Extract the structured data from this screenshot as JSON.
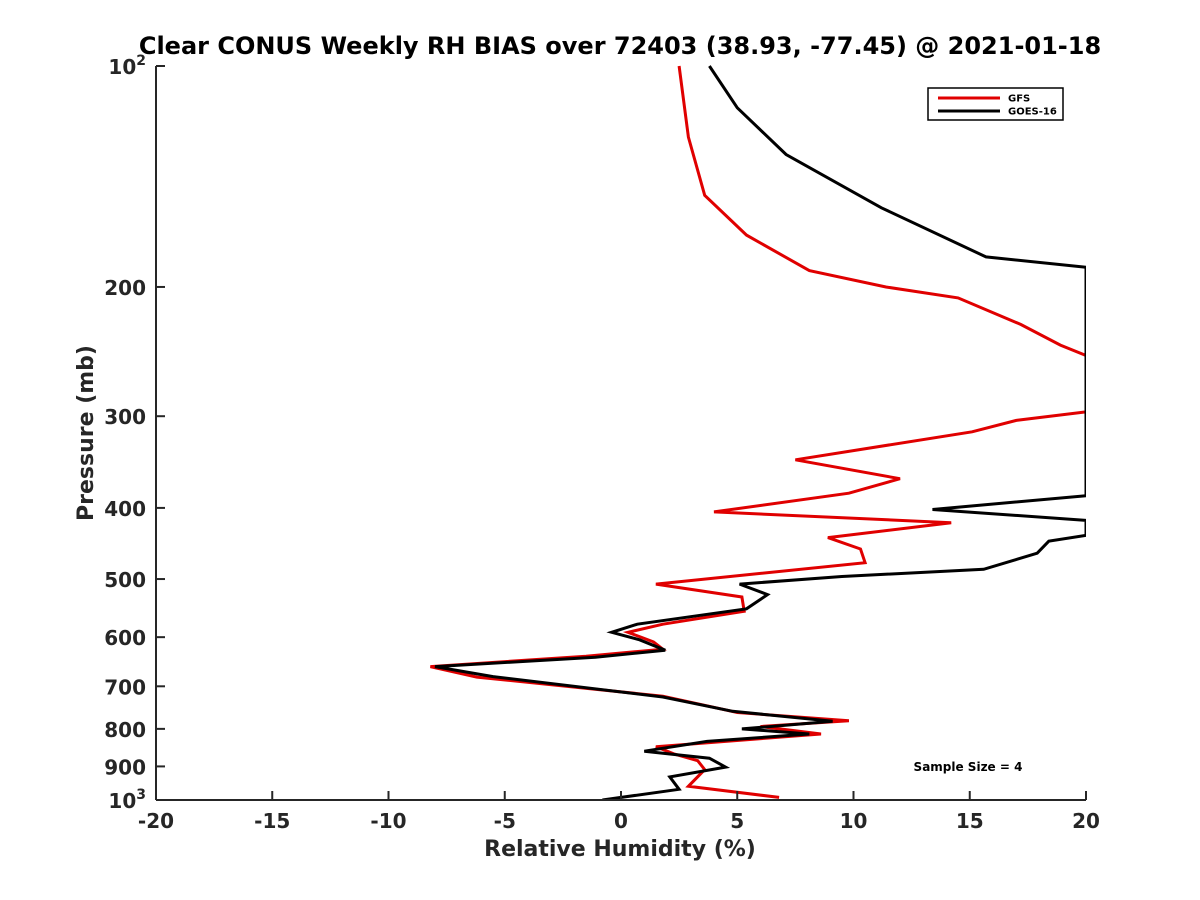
{
  "chart_data": {
    "type": "line",
    "title": "Clear CONUS Weekly RH BIAS over 72403 (38.93, -77.45) @ 2021-01-18",
    "xlabel": "Relative Humidity (%)",
    "ylabel": "Pressure (mb)",
    "xlim": [
      -20,
      20
    ],
    "ylim": [
      100,
      1000
    ],
    "y_scale": "log",
    "y_reversed": true,
    "x_ticks": [
      "-20",
      "-15",
      "-10",
      "-5",
      "0",
      "5",
      "10",
      "15",
      "20"
    ],
    "y_ticks": [
      {
        "value": 100,
        "base": "10",
        "exp": "2"
      },
      {
        "value": 200,
        "label": "200"
      },
      {
        "value": 300,
        "label": "300"
      },
      {
        "value": 400,
        "label": "400"
      },
      {
        "value": 500,
        "label": "500"
      },
      {
        "value": 600,
        "label": "600"
      },
      {
        "value": 700,
        "label": "700"
      },
      {
        "value": 800,
        "label": "800"
      },
      {
        "value": 900,
        "label": "900"
      },
      {
        "value": 1000,
        "base": "10",
        "exp": "3"
      }
    ],
    "grid": false,
    "legend_position": "top-right",
    "annotation": "Sample Size = 4",
    "series": [
      {
        "name": "GFS",
        "color": "#e00000",
        "points": [
          [
            2.5,
            100
          ],
          [
            2.9,
            125
          ],
          [
            3.6,
            150
          ],
          [
            5.4,
            170
          ],
          [
            8.1,
            190
          ],
          [
            11.4,
            200
          ],
          [
            14.5,
            207
          ],
          [
            17.2,
            225
          ],
          [
            18.9,
            240
          ],
          [
            20.0,
            248
          ],
          [
            20.0,
            296
          ],
          [
            17.0,
            304
          ],
          [
            15.1,
            315
          ],
          [
            7.5,
            344
          ],
          [
            12.0,
            365
          ],
          [
            9.8,
            382
          ],
          [
            4.0,
            405
          ],
          [
            14.2,
            419
          ],
          [
            8.9,
            439
          ],
          [
            10.3,
            455
          ],
          [
            10.5,
            475
          ],
          [
            1.5,
            508
          ],
          [
            5.2,
            529
          ],
          [
            5.3,
            553
          ],
          [
            1.8,
            576
          ],
          [
            0.3,
            591
          ],
          [
            1.4,
            609
          ],
          [
            1.8,
            623
          ],
          [
            -1.5,
            637
          ],
          [
            -8.2,
            658
          ],
          [
            -6.2,
            680
          ],
          [
            1.8,
            722
          ],
          [
            5.0,
            760
          ],
          [
            9.8,
            780
          ],
          [
            6.0,
            794
          ],
          [
            8.6,
            813
          ],
          [
            1.5,
            846
          ],
          [
            2.3,
            866
          ],
          [
            3.3,
            884
          ],
          [
            3.6,
            909
          ],
          [
            2.9,
            958
          ],
          [
            6.8,
            992
          ]
        ]
      },
      {
        "name": "GOES-16",
        "color": "#000000",
        "points": [
          [
            3.8,
            100
          ],
          [
            5.0,
            114
          ],
          [
            7.1,
            132
          ],
          [
            11.2,
            156
          ],
          [
            15.7,
            182
          ],
          [
            20.0,
            188
          ],
          [
            20.0,
            385
          ],
          [
            13.4,
            402
          ],
          [
            20.0,
            416
          ],
          [
            20.0,
            436
          ],
          [
            18.4,
            444
          ],
          [
            17.9,
            461
          ],
          [
            15.6,
            485
          ],
          [
            9.5,
            496
          ],
          [
            5.1,
            508
          ],
          [
            6.3,
            525
          ],
          [
            5.4,
            549
          ],
          [
            0.7,
            576
          ],
          [
            -0.4,
            591
          ],
          [
            0.8,
            605
          ],
          [
            1.9,
            625
          ],
          [
            -1.1,
            639
          ],
          [
            -8.0,
            658
          ],
          [
            -5.5,
            679
          ],
          [
            1.8,
            724
          ],
          [
            4.8,
            757
          ],
          [
            9.1,
            781
          ],
          [
            5.2,
            800
          ],
          [
            8.1,
            813
          ],
          [
            3.7,
            832
          ],
          [
            1.0,
            858
          ],
          [
            3.8,
            877
          ],
          [
            4.5,
            902
          ],
          [
            2.1,
            930
          ],
          [
            2.5,
            967
          ],
          [
            -0.8,
            1000
          ]
        ]
      }
    ]
  }
}
